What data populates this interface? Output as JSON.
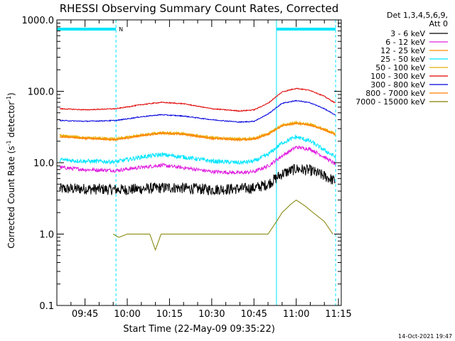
{
  "chart_data": {
    "type": "line",
    "title": "RHESSI Observing Summary Count Rates, Corrected",
    "xlabel": "Start Time (22-May-09 09:35:22)",
    "ylabel_main": "Corrected Count Rate (s",
    "ylabel_sup1": "-1",
    "ylabel_mid": " detector",
    "ylabel_sup2": "-1",
    "ylabel_end": ")",
    "y_scale": "log",
    "ylim": [
      0.1,
      1000
    ],
    "xlim": [
      "09:35",
      "11:16"
    ],
    "y_ticks": [
      {
        "value": 1000,
        "label": "1000.0"
      },
      {
        "value": 100,
        "label": "100.0"
      },
      {
        "value": 10,
        "label": "10.0"
      },
      {
        "value": 1,
        "label": "1.0"
      },
      {
        "value": 0.1,
        "label": "0.1"
      }
    ],
    "x_ticks": [
      {
        "value": "09:45",
        "label": "09:45"
      },
      {
        "value": "10:00",
        "label": "10:00"
      },
      {
        "value": "10:15",
        "label": "10:15"
      },
      {
        "value": "10:30",
        "label": "10:30"
      },
      {
        "value": "10:45",
        "label": "10:45"
      },
      {
        "value": "11:00",
        "label": "11:00"
      },
      {
        "value": "11:15",
        "label": "11:15"
      }
    ],
    "legend_header": [
      "Det 1,3,4,5,6,9,",
      "Att 0"
    ],
    "legend_position": "right",
    "night_label": "N",
    "observing_bars": [
      {
        "start": "09:35",
        "end": "09:56",
        "label": "N"
      },
      {
        "start": "10:53",
        "end": "11:14",
        "label": ""
      }
    ],
    "eclipse_lines": [
      "09:35",
      "09:56",
      "10:53",
      "11:14"
    ],
    "series": [
      {
        "name": "3 - 6 keV",
        "color": "#000000",
        "noise": 0.18,
        "points": [
          [
            "09:36",
            4.3
          ],
          [
            "09:45",
            4.3
          ],
          [
            "09:56",
            4.2
          ],
          [
            "10:00",
            4.2
          ],
          [
            "10:15",
            4.5
          ],
          [
            "10:30",
            4.2
          ],
          [
            "10:45",
            4.4
          ],
          [
            "10:50",
            5.0
          ],
          [
            "10:55",
            7.0
          ],
          [
            "11:00",
            8.2
          ],
          [
            "11:05",
            7.8
          ],
          [
            "11:10",
            6.5
          ],
          [
            "11:14",
            5.5
          ]
        ]
      },
      {
        "name": "6 - 12 keV",
        "color": "#e020e0",
        "noise": 0.06,
        "points": [
          [
            "09:36",
            8.6
          ],
          [
            "09:45",
            8.0
          ],
          [
            "09:56",
            7.8
          ],
          [
            "10:05",
            8.6
          ],
          [
            "10:12",
            9.2
          ],
          [
            "10:20",
            8.5
          ],
          [
            "10:30",
            7.5
          ],
          [
            "10:40",
            7.2
          ],
          [
            "10:45",
            7.5
          ],
          [
            "10:50",
            9.0
          ],
          [
            "10:55",
            12.5
          ],
          [
            "11:00",
            16.5
          ],
          [
            "11:05",
            15.5
          ],
          [
            "11:10",
            12.0
          ],
          [
            "11:14",
            9.5
          ]
        ]
      },
      {
        "name": "12 - 25 keV",
        "color": "#ff8c00",
        "noise": 0.04,
        "points": [
          [
            "09:36",
            24
          ],
          [
            "09:45",
            22
          ],
          [
            "09:56",
            21
          ],
          [
            "10:05",
            24
          ],
          [
            "10:12",
            26
          ],
          [
            "10:20",
            25
          ],
          [
            "10:30",
            22
          ],
          [
            "10:40",
            21
          ],
          [
            "10:45",
            21.5
          ],
          [
            "10:50",
            25
          ],
          [
            "10:55",
            33
          ],
          [
            "11:00",
            36
          ],
          [
            "11:05",
            34
          ],
          [
            "11:10",
            29
          ],
          [
            "11:14",
            25
          ]
        ]
      },
      {
        "name": "25 - 50 keV",
        "color": "#00e5ff",
        "noise": 0.07,
        "points": [
          [
            "09:36",
            11
          ],
          [
            "09:45",
            10.5
          ],
          [
            "09:56",
            10.3
          ],
          [
            "10:05",
            12
          ],
          [
            "10:12",
            13
          ],
          [
            "10:20",
            12
          ],
          [
            "10:30",
            10.5
          ],
          [
            "10:40",
            10
          ],
          [
            "10:45",
            10.5
          ],
          [
            "10:50",
            13
          ],
          [
            "10:55",
            19
          ],
          [
            "11:00",
            23
          ],
          [
            "11:05",
            20
          ],
          [
            "11:10",
            15
          ],
          [
            "11:14",
            12
          ]
        ]
      },
      {
        "name": "50 - 100 keV",
        "color": "#e8b000",
        "noise": 0.04,
        "points": [
          [
            "09:36",
            24
          ],
          [
            "09:45",
            22.5
          ],
          [
            "09:56",
            21.5
          ],
          [
            "10:05",
            24.5
          ],
          [
            "10:12",
            26.5
          ],
          [
            "10:20",
            25.5
          ],
          [
            "10:30",
            22.5
          ],
          [
            "10:40",
            21.5
          ],
          [
            "10:45",
            22
          ],
          [
            "10:50",
            25.5
          ],
          [
            "10:55",
            33.5
          ],
          [
            "11:00",
            36.5
          ],
          [
            "11:05",
            34.5
          ],
          [
            "11:10",
            29.5
          ],
          [
            "11:14",
            25.5
          ]
        ]
      },
      {
        "name": "100 - 300 keV",
        "color": "#e00000",
        "noise": 0.015,
        "points": [
          [
            "09:36",
            57
          ],
          [
            "09:45",
            55
          ],
          [
            "09:56",
            57
          ],
          [
            "10:05",
            65
          ],
          [
            "10:12",
            70
          ],
          [
            "10:20",
            67
          ],
          [
            "10:30",
            57
          ],
          [
            "10:40",
            53
          ],
          [
            "10:45",
            55
          ],
          [
            "10:50",
            68
          ],
          [
            "10:55",
            98
          ],
          [
            "11:00",
            110
          ],
          [
            "11:05",
            103
          ],
          [
            "11:10",
            85
          ],
          [
            "11:14",
            68
          ]
        ]
      },
      {
        "name": "300 - 800 keV",
        "color": "#0000e0",
        "noise": 0.015,
        "points": [
          [
            "09:36",
            39
          ],
          [
            "09:45",
            38
          ],
          [
            "09:56",
            39
          ],
          [
            "10:05",
            44
          ],
          [
            "10:12",
            47
          ],
          [
            "10:20",
            45
          ],
          [
            "10:30",
            40
          ],
          [
            "10:40",
            37
          ],
          [
            "10:45",
            38
          ],
          [
            "10:50",
            48
          ],
          [
            "10:55",
            68
          ],
          [
            "11:00",
            74
          ],
          [
            "11:05",
            69
          ],
          [
            "11:10",
            57
          ],
          [
            "11:14",
            46
          ]
        ]
      },
      {
        "name": "800 - 7000 keV",
        "color": "#ff7f00",
        "noise": 0.02,
        "points": [
          [
            "09:36",
            23
          ],
          [
            "09:45",
            22
          ],
          [
            "09:56",
            21
          ],
          [
            "10:05",
            24
          ],
          [
            "10:12",
            26
          ],
          [
            "10:20",
            25
          ],
          [
            "10:30",
            22
          ],
          [
            "10:40",
            21
          ],
          [
            "10:45",
            21.5
          ],
          [
            "10:50",
            25
          ],
          [
            "10:55",
            33
          ],
          [
            "11:00",
            35.5
          ],
          [
            "11:05",
            33.5
          ],
          [
            "11:10",
            29
          ],
          [
            "11:14",
            24.5
          ]
        ]
      },
      {
        "name": "7000 - 15000 keV",
        "color": "#808000",
        "noise": 0,
        "points": [
          [
            "09:55",
            1.0
          ],
          [
            "09:57",
            0.9
          ],
          [
            "10:00",
            1.0
          ],
          [
            "10:08",
            1.0
          ],
          [
            "10:10",
            0.6
          ],
          [
            "10:12",
            1.0
          ],
          [
            "10:18",
            1.0
          ],
          [
            "10:50",
            1.0
          ],
          [
            "10:53",
            1.5
          ],
          [
            "10:55",
            2.0
          ],
          [
            "10:58",
            2.6
          ],
          [
            "11:00",
            3.0
          ],
          [
            "11:03",
            2.5
          ],
          [
            "11:06",
            2.0
          ],
          [
            "11:10",
            1.5
          ],
          [
            "11:13",
            1.0
          ]
        ]
      }
    ]
  },
  "footer_timestamp": "14-Oct-2021 19:47"
}
